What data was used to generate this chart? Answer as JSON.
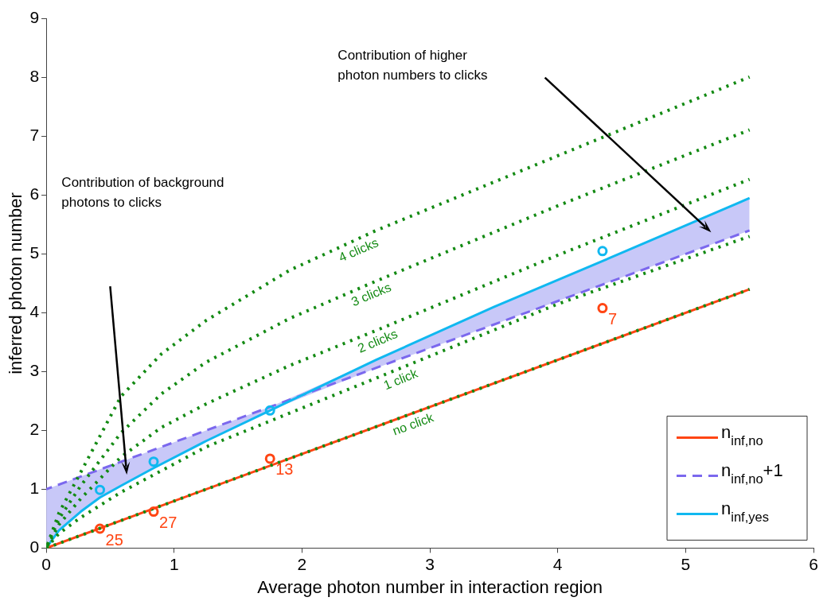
{
  "chart_data": {
    "type": "line",
    "xlabel": "Average photon number in interaction region",
    "ylabel": "inferred photon number",
    "xlim": [
      0,
      6
    ],
    "ylim": [
      0,
      9
    ],
    "xticks": [
      0,
      1,
      2,
      3,
      4,
      5,
      6
    ],
    "yticks": [
      0,
      1,
      2,
      3,
      4,
      5,
      6,
      7,
      8,
      9
    ],
    "grid": false,
    "legend": "bottom right",
    "series": [
      {
        "name": "no click",
        "color": "#138a13",
        "line_style": "dotted",
        "x": [
          0,
          5.5
        ],
        "values": [
          0,
          4.4
        ]
      },
      {
        "name": "1 click",
        "color": "#138a13",
        "line_style": "dotted",
        "x": [
          0,
          0.1,
          0.27,
          0.585,
          1.25,
          2.58,
          4,
          5.5
        ],
        "values": [
          0,
          0.25,
          0.52,
          0.95,
          1.72,
          2.89,
          4.15,
          5.3
        ]
      },
      {
        "name": "2 clicks",
        "color": "#138a13",
        "line_style": "dotted",
        "x": [
          0,
          0.1,
          0.27,
          0.585,
          0.9,
          1.25,
          1.9,
          2.58,
          4,
          5.5
        ],
        "values": [
          0,
          0.4,
          0.84,
          1.55,
          2.05,
          2.45,
          3.1,
          3.7,
          4.98,
          6.27
        ]
      },
      {
        "name": "3 clicks",
        "color": "#138a13",
        "line_style": "dotted",
        "x": [
          0,
          0.1,
          0.27,
          0.585,
          0.9,
          1.25,
          1.9,
          2.58,
          4,
          5.5
        ],
        "values": [
          0,
          0.5,
          1.06,
          1.96,
          2.62,
          3.16,
          3.9,
          4.54,
          5.82,
          7.11
        ]
      },
      {
        "name": "4 clicks",
        "color": "#138a13",
        "line_style": "dotted",
        "x": [
          0,
          0.1,
          0.27,
          0.585,
          0.9,
          1.25,
          1.9,
          2.58,
          4,
          5.5
        ],
        "values": [
          0,
          0.6,
          1.29,
          2.58,
          3.3,
          3.87,
          4.72,
          5.4,
          6.67,
          8.01
        ]
      },
      {
        "name": "n$_{inf,no}$",
        "color": "#ff4513",
        "line_style": "solid",
        "x": [
          0,
          5.5
        ],
        "values": [
          0,
          4.4
        ]
      },
      {
        "name": "n$_{inf,no}$+1",
        "color": "#7b68ee",
        "line_style": "dashed",
        "x": [
          0,
          5.5
        ],
        "values": [
          1,
          5.4
        ]
      },
      {
        "name": "n$_{inf,yes}$",
        "color": "#10b8f0",
        "line_style": "solid",
        "x": [
          0,
          0.1,
          0.27,
          0.42,
          0.585,
          0.84,
          1.25,
          1.75,
          2.58,
          3.5,
          4.35,
          5.5
        ],
        "values": [
          0,
          0.3,
          0.62,
          0.86,
          1.06,
          1.36,
          1.82,
          2.34,
          3.2,
          4.1,
          4.88,
          5.95
        ],
        "lower": [
          0,
          0.3,
          0.62,
          0.86,
          1.06,
          1.36,
          1.82,
          2.34,
          3.06,
          3.8,
          4.48,
          5.4
        ],
        "upper": [
          1,
          1.08,
          1.22,
          1.34,
          1.47,
          1.67,
          2.0,
          2.4,
          3.2,
          4.1,
          4.88,
          5.95
        ]
      },
      {
        "type": "scatter",
        "color": "#ff4513",
        "marker": "circle",
        "x": [
          0.42,
          0.84,
          1.75,
          4.35
        ],
        "values": [
          0.33,
          0.62,
          1.52,
          4.08
        ]
      },
      {
        "type": "scatter",
        "color": "#10b8f0",
        "marker": "circle",
        "x": [
          0.42,
          0.84,
          1.75,
          4.35
        ],
        "values": [
          0.99,
          1.47,
          2.34,
          5.05
        ]
      }
    ],
    "annotations": [
      "Contribution of background\nphotons to clicks",
      "Contribution of higher\nphoton numbers to clicks",
      {
        "text": "25",
        "x": 0.42,
        "y": 0.33
      },
      {
        "text": "27",
        "x": 0.84,
        "y": 0.62
      },
      {
        "text": "13",
        "x": 1.75,
        "y": 1.52
      },
      {
        "text": "7",
        "x": 4.35,
        "y": 4.08
      }
    ]
  }
}
